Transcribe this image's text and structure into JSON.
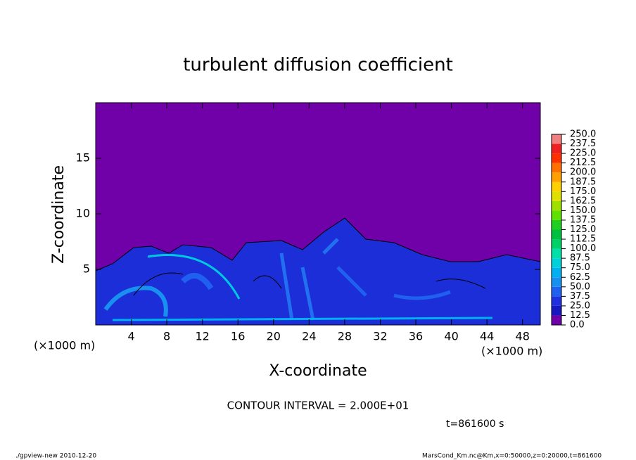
{
  "chart_data": {
    "type": "contour",
    "title": "turbulent diffusion coefficient",
    "x_label": "X-coordinate",
    "y_label": "Z-coordinate",
    "x_unit": "(×1000 m)",
    "x_unit_right": "(×1000 m)",
    "xlim": [
      0,
      50
    ],
    "ylim": [
      0,
      20
    ],
    "xticks": [
      4,
      8,
      12,
      16,
      20,
      24,
      28,
      32,
      36,
      40,
      44,
      48
    ],
    "yticks": [
      5,
      10,
      15
    ],
    "colorbar": {
      "levels": [
        {
          "value": 0,
          "label": "0.0"
        },
        12.5,
        {
          "value": 25,
          "label": "25.0"
        },
        37.5,
        {
          "value": 50,
          "label": "50.0"
        },
        62.5,
        {
          "value": 75,
          "label": "75.0"
        },
        87.5,
        {
          "value": 100,
          "label": "100.0"
        },
        112.5,
        {
          "value": 125,
          "label": "125.0"
        },
        137.5,
        {
          "value": 150,
          "label": "150.0"
        },
        162.5,
        {
          "value": 175,
          "label": "175.0"
        },
        187.5,
        {
          "value": 200,
          "label": "200.0"
        },
        212.5,
        {
          "value": 225,
          "label": "225.0"
        },
        237.5,
        {
          "value": 250,
          "label": "250.0"
        }
      ],
      "colors": [
        "#7000a8",
        "#1818c0",
        "#2030e0",
        "#2060f0",
        "#1890f0",
        "#00b0f0",
        "#00d0d8",
        "#00e0a8",
        "#00d068",
        "#00c040",
        "#20d020",
        "#60e000",
        "#a0e000",
        "#e0e000",
        "#ffd000",
        "#ffa000",
        "#ff7000",
        "#ff3000",
        "#f02020",
        "#f08080"
      ]
    },
    "contour_interval": "CONTOUR INTERVAL = 2.000E+01",
    "time_label": "t=861600 s",
    "footer_left": "./gpview-new  2010-12-20",
    "footer_right": "MarsCond_Km.nc@Km,x=0:50000,z=0:20000,t=861600"
  }
}
